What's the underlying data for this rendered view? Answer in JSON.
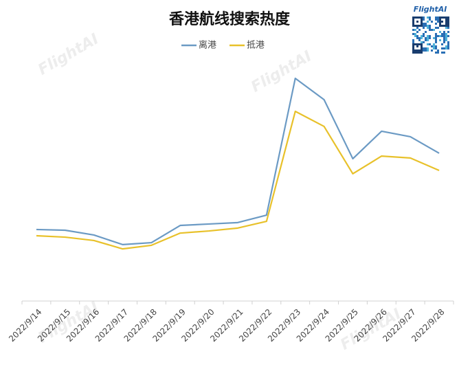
{
  "chart_data": {
    "type": "line",
    "title": "香港航线搜索热度",
    "logo": "FlightAI",
    "watermark": "FlightAI",
    "categories": [
      "2022/9/14",
      "2022/9/15",
      "2022/9/16",
      "2022/9/17",
      "2022/9/18",
      "2022/9/19",
      "2022/9/20",
      "2022/9/21",
      "2022/9/22",
      "2022/9/23",
      "2022/9/24",
      "2022/9/25",
      "2022/9/26",
      "2022/9/27",
      "2022/9/28"
    ],
    "series": [
      {
        "name": "离港",
        "color": "#6b9ac4",
        "values": [
          29.9,
          29.6,
          27.6,
          23.6,
          24.4,
          31.6,
          32.2,
          32.8,
          35.9,
          93.1,
          84.2,
          59.5,
          71.0,
          68.7,
          61.8
        ]
      },
      {
        "name": "抵港",
        "color": "#e8c12a",
        "values": [
          27.3,
          26.7,
          25.3,
          21.8,
          23.3,
          28.4,
          29.3,
          30.5,
          33.3,
          79.3,
          73.0,
          53.2,
          60.6,
          59.8,
          54.6
        ]
      }
    ],
    "ylim": [
      0,
      100
    ],
    "legend": "top"
  }
}
